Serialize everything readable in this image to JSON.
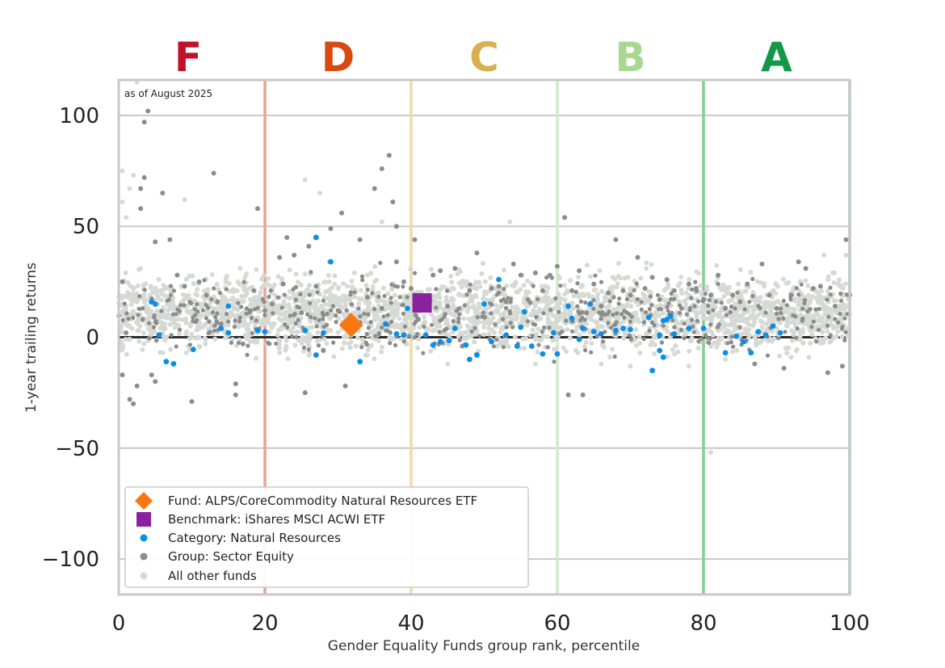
{
  "chart_data": {
    "type": "scatter",
    "title": "",
    "xlabel": "Gender Equality Funds group rank, percentile",
    "ylabel": "1-year trailing returns",
    "xlim": [
      0,
      100
    ],
    "ylim": [
      -116,
      116
    ],
    "x_ticks": [
      0,
      20,
      40,
      60,
      80,
      100
    ],
    "y_ticks": [
      100,
      50,
      0,
      -50,
      -100
    ],
    "y_tick_labels": [
      "100",
      "50",
      "0",
      "−50",
      "−100"
    ],
    "grid": "horizontal",
    "annotation": "as of August 2025",
    "legend_position": "lower-left",
    "grade_bands": [
      {
        "label": "F",
        "center": 9.5,
        "color": "#c0102a",
        "boundary": 20,
        "line_color": "#f0a090"
      },
      {
        "label": "D",
        "center": 30,
        "color": "#d64a10",
        "boundary": 40,
        "line_color": "#f0d8a8"
      },
      {
        "label": "C",
        "center": 50,
        "color": "#d9b050",
        "boundary": 60,
        "line_color": "#d0ecc8"
      },
      {
        "label": "B",
        "center": 70,
        "color": "#a8d890",
        "boundary": 80,
        "line_color": "#88cc98"
      },
      {
        "label": "A",
        "center": 90,
        "color": "#129848",
        "boundary": 100,
        "line_color": "#88cc98"
      }
    ],
    "series": [
      {
        "name": "Fund: ALPS/CoreCommodity Natural Resources ETF",
        "marker": "diamond",
        "color": "#f97610",
        "points": [
          [
            31.8,
            5.5
          ]
        ]
      },
      {
        "name": "Benchmark: iShares MSCI ACWI ETF",
        "marker": "square",
        "color": "#8a22a0",
        "points": [
          [
            41.5,
            15.5
          ]
        ]
      },
      {
        "name": "Category: Natural Resources",
        "marker": "dot",
        "color": "#0a8ee6",
        "points": [
          [
            4.5,
            16
          ],
          [
            5,
            15
          ],
          [
            5.5,
            1
          ],
          [
            6.5,
            -11
          ],
          [
            7.5,
            -12
          ],
          [
            10.2,
            -5.5
          ],
          [
            15,
            14
          ],
          [
            14,
            4
          ],
          [
            15,
            2
          ],
          [
            19,
            3
          ],
          [
            20,
            2.5
          ],
          [
            27,
            45
          ],
          [
            25.5,
            3
          ],
          [
            27,
            -8
          ],
          [
            28,
            2
          ],
          [
            29,
            34
          ],
          [
            33,
            -11
          ],
          [
            36.5,
            6
          ],
          [
            38,
            1.5
          ],
          [
            39,
            1
          ],
          [
            39.5,
            13
          ],
          [
            42,
            1
          ],
          [
            43,
            -3.5
          ],
          [
            44,
            -2
          ],
          [
            45.2,
            -1.5
          ],
          [
            46,
            4
          ],
          [
            47.5,
            -3.5
          ],
          [
            48,
            -10
          ],
          [
            49,
            -8
          ],
          [
            50,
            15
          ],
          [
            51,
            -2
          ],
          [
            52,
            26
          ],
          [
            53,
            1
          ],
          [
            54.5,
            -4
          ],
          [
            55.5,
            11.5
          ],
          [
            55,
            4.5
          ],
          [
            56.5,
            -4
          ],
          [
            58,
            -7.5
          ],
          [
            59.5,
            2
          ],
          [
            60,
            -7.5
          ],
          [
            61.5,
            14
          ],
          [
            62,
            8.5
          ],
          [
            63,
            -1
          ],
          [
            63.5,
            4
          ],
          [
            64.5,
            15
          ],
          [
            65,
            2.5
          ],
          [
            66,
            1.5
          ],
          [
            68,
            3
          ],
          [
            69,
            4
          ],
          [
            70,
            3.5
          ],
          [
            72.5,
            9
          ],
          [
            73,
            -15
          ],
          [
            74,
            1
          ],
          [
            74.5,
            7.5
          ],
          [
            75,
            8
          ],
          [
            74,
            -6
          ],
          [
            74.5,
            -9
          ],
          [
            75.5,
            9.5
          ],
          [
            76,
            1.5
          ],
          [
            78,
            4
          ],
          [
            80,
            4
          ],
          [
            83,
            -7
          ],
          [
            84.5,
            0.5
          ],
          [
            85.5,
            -2
          ],
          [
            86.5,
            -7
          ],
          [
            87.5,
            2.5
          ],
          [
            88.5,
            1
          ],
          [
            89.5,
            5
          ],
          [
            90.5,
            2
          ]
        ]
      },
      {
        "name": "Group: Sector Equity",
        "marker": "dot",
        "color": "#8c8c8c",
        "points": [
          [
            0.5,
            25
          ],
          [
            0.5,
            -17
          ],
          [
            1,
            2
          ],
          [
            1.5,
            -28
          ],
          [
            2,
            -30
          ],
          [
            2.5,
            -22
          ],
          [
            3,
            67
          ],
          [
            3.5,
            72
          ],
          [
            3.5,
            97
          ],
          [
            4,
            102
          ],
          [
            3,
            58
          ],
          [
            4.5,
            -17
          ],
          [
            5,
            -20
          ],
          [
            5,
            43
          ],
          [
            6,
            65
          ],
          [
            7,
            44
          ],
          [
            8,
            28
          ],
          [
            9,
            23
          ],
          [
            10,
            -29
          ],
          [
            10.5,
            7
          ],
          [
            11,
            25
          ],
          [
            12,
            19
          ],
          [
            13,
            74
          ],
          [
            13.5,
            16
          ],
          [
            14,
            6
          ],
          [
            16,
            -21
          ],
          [
            16,
            -26
          ],
          [
            17,
            -3
          ],
          [
            18,
            12
          ],
          [
            18.5,
            21
          ],
          [
            19,
            58
          ],
          [
            20,
            12
          ],
          [
            21,
            15
          ],
          [
            22,
            36
          ],
          [
            22.5,
            24
          ],
          [
            23,
            45
          ],
          [
            24,
            37
          ],
          [
            25,
            11
          ],
          [
            25.5,
            -25
          ],
          [
            26,
            41
          ],
          [
            27,
            23
          ],
          [
            28,
            -6
          ],
          [
            29,
            49
          ],
          [
            30,
            12
          ],
          [
            30.5,
            56
          ],
          [
            31,
            -22
          ],
          [
            32,
            6
          ],
          [
            33,
            44
          ],
          [
            34,
            18
          ],
          [
            35,
            67
          ],
          [
            36,
            76
          ],
          [
            36,
            13
          ],
          [
            37,
            82
          ],
          [
            38,
            50
          ],
          [
            38,
            34
          ],
          [
            37.5,
            61
          ],
          [
            39,
            25
          ],
          [
            40,
            22
          ],
          [
            40.5,
            44
          ],
          [
            41,
            8
          ],
          [
            42,
            18
          ],
          [
            43,
            28
          ],
          [
            44,
            30
          ],
          [
            45,
            14
          ],
          [
            46,
            31
          ],
          [
            47,
            -4
          ],
          [
            48,
            21
          ],
          [
            49,
            38
          ],
          [
            50,
            9
          ],
          [
            51,
            22
          ],
          [
            52,
            23
          ],
          [
            53,
            16
          ],
          [
            54,
            33
          ],
          [
            55,
            28
          ],
          [
            56,
            17
          ],
          [
            57,
            29
          ],
          [
            58,
            21
          ],
          [
            59,
            28
          ],
          [
            60,
            32
          ],
          [
            61,
            54
          ],
          [
            61.5,
            -26
          ],
          [
            63.5,
            -26
          ],
          [
            62,
            21
          ],
          [
            63,
            30
          ],
          [
            64,
            11
          ],
          [
            65,
            24
          ],
          [
            66,
            14
          ],
          [
            67,
            20
          ],
          [
            68,
            44
          ],
          [
            69,
            21
          ],
          [
            70,
            19
          ],
          [
            71,
            36
          ],
          [
            72,
            22
          ],
          [
            73,
            27
          ],
          [
            74,
            17
          ],
          [
            75,
            26
          ],
          [
            76,
            21
          ],
          [
            77,
            13
          ],
          [
            78,
            24
          ],
          [
            79,
            22
          ],
          [
            80,
            17
          ],
          [
            81,
            19
          ],
          [
            82,
            28
          ],
          [
            83,
            13
          ],
          [
            84,
            19
          ],
          [
            85,
            16
          ],
          [
            86,
            24
          ],
          [
            87,
            -12
          ],
          [
            88,
            33
          ],
          [
            89,
            19
          ],
          [
            90,
            13
          ],
          [
            91,
            -14
          ],
          [
            92,
            19
          ],
          [
            93,
            34
          ],
          [
            94,
            31
          ],
          [
            95,
            22
          ],
          [
            96,
            23
          ],
          [
            97,
            -16
          ],
          [
            98,
            14
          ],
          [
            99,
            -13
          ],
          [
            99.5,
            44
          ],
          [
            100,
            19
          ]
        ]
      },
      {
        "name": "All other funds",
        "marker": "dot",
        "color": "#d5dad5",
        "points": [
          [
            0.5,
            75
          ],
          [
            0.5,
            61
          ],
          [
            1,
            54
          ],
          [
            1.5,
            67
          ],
          [
            2,
            73
          ],
          [
            2.5,
            115
          ],
          [
            9,
            62
          ],
          [
            25.5,
            71
          ],
          [
            27.5,
            65
          ],
          [
            36,
            52
          ],
          [
            53.5,
            52
          ],
          [
            81,
            -52
          ],
          [
            99.5,
            37
          ],
          [
            96.5,
            37
          ],
          [
            3,
            31
          ],
          [
            6,
            -7
          ],
          [
            11,
            -4
          ],
          [
            18,
            -2
          ],
          [
            22,
            -7
          ],
          [
            28,
            -6
          ],
          [
            34,
            -8
          ],
          [
            45,
            -12
          ],
          [
            57,
            -12
          ],
          [
            66,
            -12
          ],
          [
            70,
            -13
          ],
          [
            78,
            -13
          ],
          [
            83,
            -10
          ],
          [
            92,
            -9
          ]
        ]
      }
    ]
  }
}
